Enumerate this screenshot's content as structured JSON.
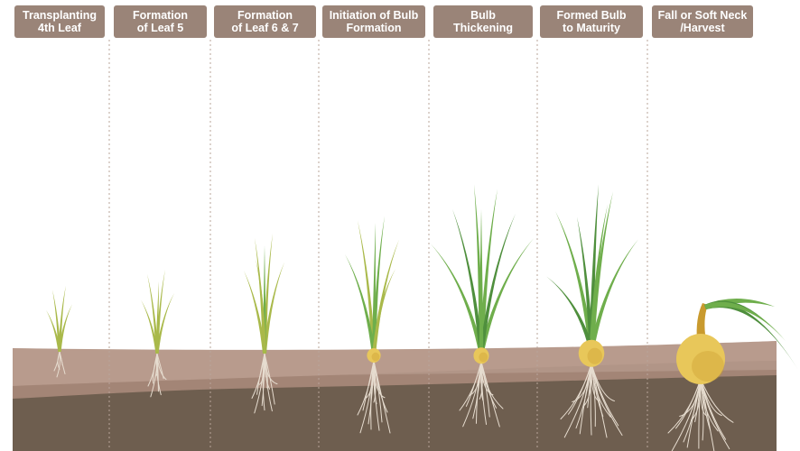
{
  "stages": [
    {
      "line1": "Transplanting",
      "line2": "4th Leaf"
    },
    {
      "line1": "Formation",
      "line2": "of Leaf 5"
    },
    {
      "line1": "Formation",
      "line2": "of Leaf 6 & 7"
    },
    {
      "line1": "Initiation of Bulb",
      "line2": "Formation"
    },
    {
      "line1": "Bulb",
      "line2": "Thickening"
    },
    {
      "line1": "Formed Bulb",
      "line2": "to Maturity"
    },
    {
      "line1": "Fall or Soft Neck",
      "line2": "/Harvest"
    }
  ],
  "colors": {
    "label_bg": "#9a8478",
    "soil_top": "#b89b8d",
    "soil_dark": "#6e5e4f",
    "soil_mid": "#c7aea1",
    "divider": "#b8a49a",
    "leaf_young": "#a9b94a",
    "leaf_mature": "#6fae4c",
    "leaf_dark": "#4f8f3d",
    "root": "#e6dccf",
    "bulb": "#e8c75a",
    "bulb_dark": "#c99a2e"
  }
}
